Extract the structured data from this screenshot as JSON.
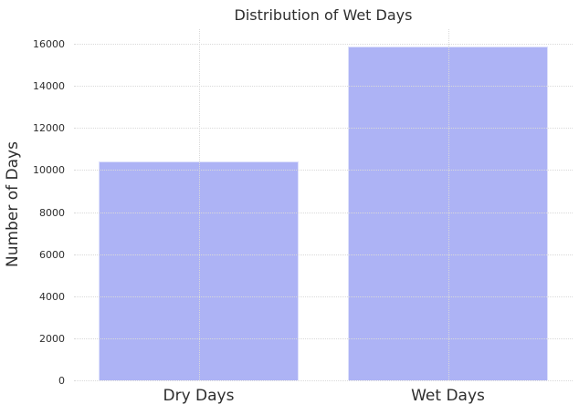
{
  "figure": {
    "background": "#ffffff"
  },
  "chart_data": {
    "type": "bar",
    "title": "Distribution of Wet Days",
    "xlabel": "",
    "ylabel": "Number of Days",
    "categories": [
      "Dry Days",
      "Wet Days"
    ],
    "values": [
      10420,
      15880
    ],
    "ylim": [
      0,
      16700
    ],
    "yticks": [
      0,
      2000,
      4000,
      6000,
      8000,
      10000,
      12000,
      14000,
      16000
    ],
    "grid": {
      "style": "dotted",
      "color": "#d9d9d9",
      "axes": "both",
      "drawn_over_bars": true
    },
    "legend_position": "none",
    "bar_color": "#adb3f5",
    "bar_edge_color": "#ffffff",
    "bar_relative_width": 0.8,
    "text_color": "#2e2e2e"
  }
}
